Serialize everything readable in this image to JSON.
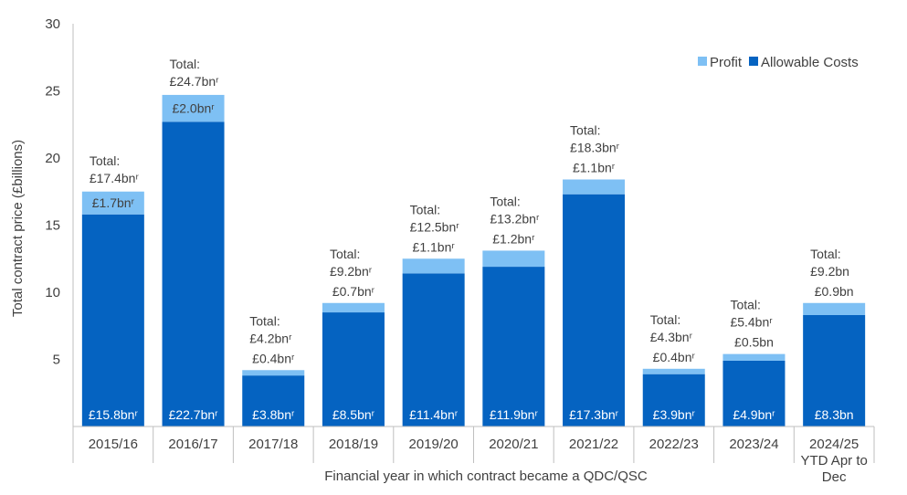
{
  "chart_data": {
    "type": "bar",
    "stacked": true,
    "title": "",
    "xlabel": "Financial year in which contract became a QDC/QSC",
    "ylabel": "Total contract price (£billions)",
    "ylim": [
      0,
      30
    ],
    "yticks": [
      "5",
      "10",
      "15",
      "20",
      "25",
      "30"
    ],
    "grid": false,
    "legend_position": "top-right",
    "categories": [
      [
        "2015/16"
      ],
      [
        "2016/17"
      ],
      [
        "2017/18"
      ],
      [
        "2018/19"
      ],
      [
        "2019/20"
      ],
      [
        "2020/21"
      ],
      [
        "2021/22"
      ],
      [
        "2022/23"
      ],
      [
        "2023/24"
      ],
      [
        "2024/25",
        "YTD Apr to",
        "Dec"
      ]
    ],
    "series": [
      {
        "name": "Allowable Costs",
        "color": "#0563c1",
        "values": [
          15.8,
          22.7,
          3.8,
          8.5,
          11.4,
          11.9,
          17.3,
          3.9,
          4.9,
          8.3
        ],
        "labels": [
          "£15.8bnʳ",
          "£22.7bnʳ",
          "£3.8bnʳ",
          "£8.5bnʳ",
          "£11.4bnʳ",
          "£11.9bnʳ",
          "£17.3bnʳ",
          "£3.9bnʳ",
          "£4.9bnʳ",
          "£8.3bn"
        ]
      },
      {
        "name": "Profit",
        "color": "#7ec0f4",
        "values": [
          1.7,
          2.0,
          0.4,
          0.7,
          1.1,
          1.2,
          1.1,
          0.4,
          0.5,
          0.9
        ],
        "labels": [
          "£1.7bnʳ",
          "£2.0bnʳ",
          "£0.4bnʳ",
          "£0.7bnʳ",
          "£1.1bnʳ",
          "£1.2bnʳ",
          "£1.1bnʳ",
          "£0.4bnʳ",
          "£0.5bn",
          "£0.9bn"
        ]
      }
    ],
    "totals": [
      17.4,
      24.7,
      4.2,
      9.2,
      12.5,
      13.2,
      18.3,
      4.3,
      5.4,
      9.2
    ],
    "total_labels": [
      [
        "Total:",
        "£17.4bnʳ"
      ],
      [
        "Total:",
        "£24.7bnʳ"
      ],
      [
        "Total:",
        "£4.2bnʳ"
      ],
      [
        "Total:",
        "£9.2bnʳ"
      ],
      [
        "Total:",
        "£12.5bnʳ"
      ],
      [
        "Total:",
        "£13.2bnʳ"
      ],
      [
        "Total:",
        "£18.3bnʳ"
      ],
      [
        "Total:",
        "£4.3bnʳ"
      ],
      [
        "Total:",
        "£5.4bnʳ"
      ],
      [
        "Total:",
        "£9.2bn"
      ]
    ],
    "colors": {
      "axis": "#bfbfbf",
      "text": "#404040",
      "inner_label": "#ffffff",
      "profit_label": "#404040"
    }
  }
}
